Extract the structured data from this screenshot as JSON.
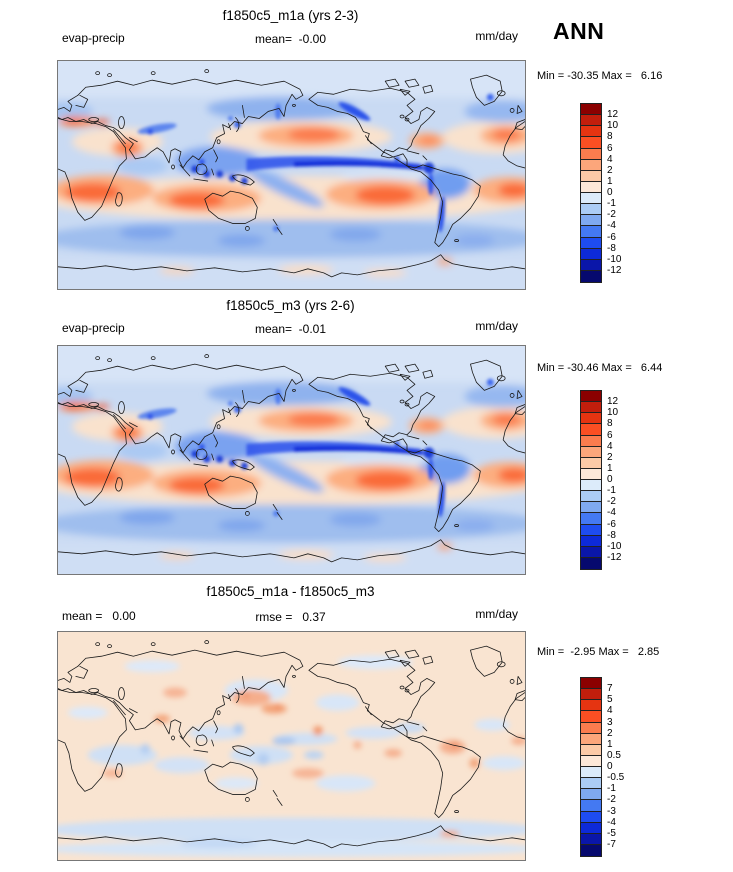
{
  "figure": {
    "season": "ANN",
    "variable": "evap-precip",
    "units": "mm/day"
  },
  "panels": [
    {
      "title": "f1850c5_m1a (yrs 2-3)",
      "left_label": "evap-precip",
      "center_label": "mean=  -0.00",
      "right_label": "mm/day",
      "minmax": "Min = -30.35 Max =   6.16",
      "colorbar": {
        "colors": [
          "#8b0000",
          "#c21e0c",
          "#e53411",
          "#fb4f23",
          "#fb7c4e",
          "#fca67b",
          "#fccaa7",
          "#fde8d8",
          "#dcebfa",
          "#abccf5",
          "#7fa9f0",
          "#4479f2",
          "#1e4cf0",
          "#0d2ad8",
          "#0a16a9",
          "#06096e"
        ],
        "labels": [
          "12",
          "10",
          "8",
          "6",
          "4",
          "2",
          "1",
          "0",
          "-1",
          "-2",
          "-4",
          "-6",
          "-8",
          "-10",
          "-12"
        ]
      }
    },
    {
      "title": "f1850c5_m3 (yrs 2-6)",
      "left_label": "evap-precip",
      "center_label": "mean=  -0.01",
      "right_label": "mm/day",
      "minmax": "Min = -30.46 Max =   6.44",
      "colorbar": {
        "colors": [
          "#8b0000",
          "#c21e0c",
          "#e53411",
          "#fb4f23",
          "#fb7c4e",
          "#fca67b",
          "#fccaa7",
          "#fde8d8",
          "#dcebfa",
          "#abccf5",
          "#7fa9f0",
          "#4479f2",
          "#1e4cf0",
          "#0d2ad8",
          "#0a16a9",
          "#06096e"
        ],
        "labels": [
          "12",
          "10",
          "8",
          "6",
          "4",
          "2",
          "1",
          "0",
          "-1",
          "-2",
          "-4",
          "-6",
          "-8",
          "-10",
          "-12"
        ]
      }
    },
    {
      "title": "f1850c5_m1a - f1850c5_m3",
      "left_label": "mean =   0.00",
      "center_label": "rmse =   0.37",
      "right_label": "mm/day",
      "minmax": "Min =  -2.95 Max =   2.85",
      "colorbar": {
        "colors": [
          "#8b0000",
          "#c21e0c",
          "#e53411",
          "#fb4f23",
          "#fb7c4e",
          "#fca67b",
          "#fccaa7",
          "#fde8d8",
          "#dcebfa",
          "#abccf5",
          "#7fa9f0",
          "#4479f2",
          "#1e4cf0",
          "#0d2ad8",
          "#0a16a9",
          "#06096e"
        ],
        "labels": [
          "7",
          "5",
          "4",
          "3",
          "2",
          "1",
          "0.5",
          "0",
          "-0.5",
          "-1",
          "-2",
          "-3",
          "-4",
          "-5",
          "-7"
        ]
      }
    }
  ],
  "chart_data": [
    {
      "type": "heatmap",
      "title": "f1850c5_m1a (yrs 2-3)",
      "variable": "evap-precip",
      "season": "ANN",
      "units": "mm/day",
      "mean": -0.0,
      "min": -30.35,
      "max": 6.16,
      "contour_levels": [
        -12,
        -10,
        -8,
        -6,
        -4,
        -2,
        -1,
        0,
        1,
        2,
        4,
        6,
        8,
        10,
        12
      ],
      "palette": "blue-white-red, 16 discrete bands",
      "projection": "global cylindrical lat-lon, 0-360E, coastlines overlaid",
      "pattern": "positive (red) evap-dominated subtropical ocean basins; negative (blue) ITCZ band across equatorial Pacific, maritime continent, mid-latitude storm tracks and Southern Ocean"
    },
    {
      "type": "heatmap",
      "title": "f1850c5_m3 (yrs 2-6)",
      "variable": "evap-precip",
      "season": "ANN",
      "units": "mm/day",
      "mean": -0.01,
      "min": -30.46,
      "max": 6.44,
      "contour_levels": [
        -12,
        -10,
        -8,
        -6,
        -4,
        -2,
        -1,
        0,
        1,
        2,
        4,
        6,
        8,
        10,
        12
      ],
      "palette": "blue-white-red, 16 discrete bands",
      "projection": "global cylindrical lat-lon, 0-360E, coastlines overlaid",
      "pattern": "same spatial structure as panel 1"
    },
    {
      "type": "heatmap",
      "title": "f1850c5_m1a - f1850c5_m3",
      "variable": "evap-precip difference",
      "season": "ANN",
      "units": "mm/day",
      "mean": 0.0,
      "rmse": 0.37,
      "min": -2.95,
      "max": 2.85,
      "contour_levels": [
        -7,
        -5,
        -4,
        -3,
        -2,
        -1,
        -0.5,
        0,
        0.5,
        1,
        2,
        3,
        4,
        5,
        7
      ],
      "palette": "blue-white-red, 16 discrete bands",
      "projection": "global cylindrical lat-lon, 0-360E, coastlines overlaid",
      "pattern": "near-zero pale field with scattered weak blue and salmon anomalies in tropics, NW Pacific and Southern Ocean"
    }
  ]
}
